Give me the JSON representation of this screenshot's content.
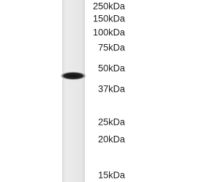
{
  "blot": {
    "markers": [
      "250kDa",
      "150kDa",
      "100kDa",
      "75kDa",
      "50kDa",
      "37kDa",
      "25kDa",
      "20kDa",
      "15kDa"
    ]
  }
}
